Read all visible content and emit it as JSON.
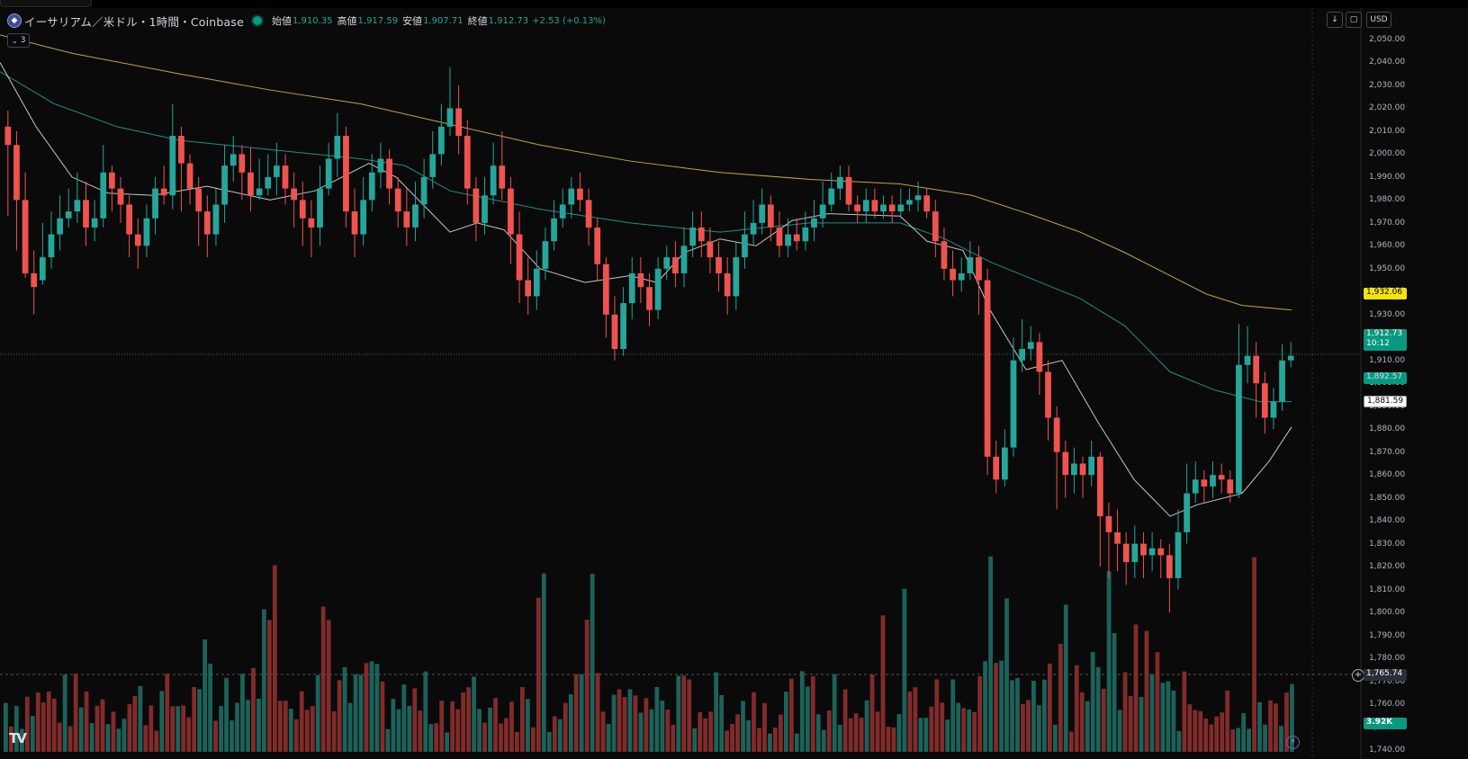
{
  "header": {
    "symbol_title": "イーサリアム／米ドル・1時間・Coinbase",
    "open_label": "始値",
    "open_value": "1,910.35",
    "high_label": "高値",
    "high_value": "1,917.59",
    "low_label": "安値",
    "low_value": "1,907.71",
    "close_label": "終値",
    "close_value": "1,912.73",
    "change": "+2.53 (+0.13%)",
    "indicator_count": "3"
  },
  "toolbar": {
    "currency": "USD"
  },
  "axis": {
    "ticks": [
      "2,050.00",
      "2,040.00",
      "2,030.00",
      "2,020.00",
      "2,010.00",
      "2,000.00",
      "1,990.00",
      "1,980.00",
      "1,970.00",
      "1,960.00",
      "1,950.00",
      "1,940.00",
      "1,930.00",
      "1,920.00",
      "1,910.00",
      "1,900.00",
      "1,890.00",
      "1,880.00",
      "1,870.00",
      "1,860.00",
      "1,850.00",
      "1,840.00",
      "1,830.00",
      "1,820.00",
      "1,810.00",
      "1,800.00",
      "1,790.00",
      "1,780.00",
      "1,770.00",
      "1,760.00",
      "1,750.00",
      "1,740.00"
    ]
  },
  "badges": {
    "ma_200": "1,932.06",
    "last_price": "1,912.73",
    "countdown": "10:12",
    "ma_100": "1,892.57",
    "ma_20": "1,881.59",
    "crosshair_price": "1,765.74",
    "volume": "3.92K"
  },
  "colors": {
    "up": "#26a69a",
    "down": "#ef5350",
    "ma_200": "#e0c050",
    "ma_100": "#26a69a",
    "ma_20": "#e8e8e8"
  },
  "chart_data": {
    "type": "candlestick",
    "ylim": [
      1740,
      2055
    ],
    "ma_lines": {
      "ma_200": [
        [
          0,
          2052
        ],
        [
          80,
          2044
        ],
        [
          200,
          2035
        ],
        [
          300,
          2028
        ],
        [
          400,
          2022
        ],
        [
          500,
          2013
        ],
        [
          600,
          2004
        ],
        [
          700,
          1997
        ],
        [
          800,
          1992
        ],
        [
          900,
          1989
        ],
        [
          1000,
          1987
        ],
        [
          1080,
          1982
        ],
        [
          1150,
          1973
        ],
        [
          1200,
          1966
        ],
        [
          1250,
          1957
        ],
        [
          1300,
          1947
        ],
        [
          1340,
          1939
        ],
        [
          1380,
          1934
        ],
        [
          1435,
          1932
        ]
      ],
      "ma_100": [
        [
          0,
          2036
        ],
        [
          60,
          2022
        ],
        [
          130,
          2012
        ],
        [
          200,
          2006
        ],
        [
          300,
          2002
        ],
        [
          400,
          1998
        ],
        [
          450,
          1995
        ],
        [
          500,
          1984
        ],
        [
          600,
          1976
        ],
        [
          700,
          1970
        ],
        [
          800,
          1966
        ],
        [
          900,
          1970
        ],
        [
          1000,
          1970
        ],
        [
          1050,
          1963
        ],
        [
          1100,
          1953
        ],
        [
          1150,
          1945
        ],
        [
          1200,
          1937
        ],
        [
          1250,
          1925
        ],
        [
          1300,
          1905
        ],
        [
          1350,
          1897
        ],
        [
          1400,
          1892
        ],
        [
          1435,
          1892
        ]
      ],
      "ma_20": [
        [
          0,
          2040
        ],
        [
          40,
          2012
        ],
        [
          80,
          1990
        ],
        [
          120,
          1983
        ],
        [
          170,
          1982
        ],
        [
          230,
          1986
        ],
        [
          300,
          1980
        ],
        [
          350,
          1984
        ],
        [
          380,
          1990
        ],
        [
          410,
          1996
        ],
        [
          440,
          1990
        ],
        [
          470,
          1978
        ],
        [
          500,
          1966
        ],
        [
          530,
          1970
        ],
        [
          560,
          1967
        ],
        [
          600,
          1950
        ],
        [
          650,
          1944
        ],
        [
          700,
          1947
        ],
        [
          730,
          1944
        ],
        [
          760,
          1957
        ],
        [
          800,
          1963
        ],
        [
          840,
          1960
        ],
        [
          880,
          1971
        ],
        [
          920,
          1974
        ],
        [
          1000,
          1973
        ],
        [
          1030,
          1962
        ],
        [
          1070,
          1958
        ],
        [
          1100,
          1932
        ],
        [
          1140,
          1906
        ],
        [
          1180,
          1910
        ],
        [
          1220,
          1883
        ],
        [
          1260,
          1858
        ],
        [
          1300,
          1842
        ],
        [
          1330,
          1847
        ],
        [
          1380,
          1852
        ],
        [
          1410,
          1866
        ],
        [
          1435,
          1881
        ]
      ]
    },
    "candles_ohlc": [
      [
        2012,
        2004,
        2019,
        1973
      ],
      [
        2004,
        1980,
        2010,
        1958
      ],
      [
        1980,
        1948,
        1992,
        1946
      ],
      [
        1948,
        1942,
        1958,
        1930
      ],
      [
        1945,
        1955,
        1970,
        1943
      ],
      [
        1955,
        1965,
        1975,
        1950
      ],
      [
        1965,
        1972,
        1982,
        1958
      ],
      [
        1972,
        1975,
        1985,
        1968
      ],
      [
        1975,
        1980,
        1992,
        1970
      ],
      [
        1980,
        1968,
        1988,
        1960
      ],
      [
        1968,
        1972,
        1980,
        1962
      ],
      [
        1972,
        1992,
        2004,
        1968
      ],
      [
        1992,
        1985,
        1995,
        1975
      ],
      [
        1985,
        1978,
        1990,
        1970
      ],
      [
        1978,
        1965,
        1982,
        1955
      ],
      [
        1965,
        1960,
        1972,
        1950
      ],
      [
        1960,
        1972,
        1978,
        1955
      ],
      [
        1972,
        1985,
        1990,
        1965
      ],
      [
        1985,
        1982,
        1995,
        1978
      ],
      [
        1982,
        2008,
        2022,
        1976
      ],
      [
        2008,
        1996,
        2012,
        1975
      ],
      [
        1996,
        1985,
        2000,
        1978
      ],
      [
        1985,
        1975,
        1990,
        1960
      ],
      [
        1975,
        1965,
        1982,
        1955
      ],
      [
        1965,
        1978,
        1985,
        1960
      ],
      [
        1978,
        1995,
        2004,
        1970
      ],
      [
        1995,
        2000,
        2008,
        1988
      ],
      [
        2000,
        1992,
        2004,
        1980
      ],
      [
        1992,
        1982,
        2003,
        1975
      ],
      [
        1982,
        1985,
        1998,
        1980
      ],
      [
        1985,
        1990,
        2000,
        1982
      ],
      [
        1990,
        1995,
        2005,
        1982
      ],
      [
        1995,
        1985,
        2000,
        1978
      ],
      [
        1985,
        1980,
        1992,
        1968
      ],
      [
        1980,
        1972,
        1988,
        1960
      ],
      [
        1972,
        1968,
        1980,
        1955
      ],
      [
        1968,
        1985,
        1995,
        1960
      ],
      [
        1985,
        1998,
        2005,
        1982
      ],
      [
        1998,
        2008,
        2018,
        1990
      ],
      [
        2008,
        1975,
        2012,
        1968
      ],
      [
        1975,
        1965,
        1985,
        1955
      ],
      [
        1965,
        1980,
        1990,
        1960
      ],
      [
        1980,
        1992,
        2000,
        1975
      ],
      [
        1992,
        1998,
        2005,
        1985
      ],
      [
        1998,
        1985,
        2002,
        1978
      ],
      [
        1985,
        1975,
        1990,
        1968
      ],
      [
        1975,
        1968,
        1985,
        1960
      ],
      [
        1968,
        1978,
        1988,
        1962
      ],
      [
        1978,
        1990,
        1998,
        1972
      ],
      [
        1990,
        2000,
        2010,
        1985
      ],
      [
        2000,
        2012,
        2022,
        1995
      ],
      [
        2012,
        2020,
        2038,
        2008
      ],
      [
        2020,
        2008,
        2030,
        2000
      ],
      [
        2008,
        1985,
        2015,
        1978
      ],
      [
        1985,
        1970,
        1990,
        1962
      ],
      [
        1970,
        1982,
        1990,
        1965
      ],
      [
        1982,
        1995,
        2005,
        1978
      ],
      [
        1995,
        1985,
        2010,
        1980
      ],
      [
        1985,
        1965,
        1990,
        1952
      ],
      [
        1965,
        1945,
        1975,
        1935
      ],
      [
        1945,
        1938,
        1955,
        1930
      ],
      [
        1938,
        1950,
        1958,
        1932
      ],
      [
        1950,
        1962,
        1968,
        1945
      ],
      [
        1962,
        1972,
        1980,
        1958
      ],
      [
        1972,
        1978,
        1985,
        1968
      ],
      [
        1978,
        1985,
        1990,
        1972
      ],
      [
        1985,
        1980,
        1992,
        1975
      ],
      [
        1980,
        1968,
        1985,
        1960
      ],
      [
        1968,
        1952,
        1972,
        1945
      ],
      [
        1952,
        1930,
        1955,
        1920
      ],
      [
        1930,
        1915,
        1938,
        1910
      ],
      [
        1915,
        1935,
        1942,
        1912
      ],
      [
        1935,
        1948,
        1955,
        1928
      ],
      [
        1948,
        1942,
        1955,
        1935
      ],
      [
        1942,
        1932,
        1948,
        1925
      ],
      [
        1932,
        1950,
        1955,
        1928
      ],
      [
        1950,
        1955,
        1960,
        1945
      ],
      [
        1955,
        1948,
        1962,
        1942
      ],
      [
        1948,
        1960,
        1968,
        1942
      ],
      [
        1960,
        1968,
        1975,
        1955
      ],
      [
        1968,
        1962,
        1975,
        1955
      ],
      [
        1962,
        1955,
        1968,
        1948
      ],
      [
        1955,
        1948,
        1962,
        1940
      ],
      [
        1948,
        1938,
        1955,
        1930
      ],
      [
        1938,
        1955,
        1962,
        1932
      ],
      [
        1955,
        1965,
        1975,
        1950
      ],
      [
        1965,
        1970,
        1980,
        1960
      ],
      [
        1970,
        1978,
        1985,
        1965
      ],
      [
        1978,
        1968,
        1982,
        1962
      ],
      [
        1968,
        1960,
        1975,
        1955
      ],
      [
        1960,
        1965,
        1972,
        1955
      ],
      [
        1965,
        1962,
        1972,
        1958
      ],
      [
        1962,
        1968,
        1975,
        1958
      ],
      [
        1968,
        1972,
        1980,
        1962
      ],
      [
        1972,
        1978,
        1988,
        1968
      ],
      [
        1978,
        1985,
        1992,
        1975
      ],
      [
        1985,
        1990,
        1995,
        1980
      ],
      [
        1990,
        1978,
        1995,
        1975
      ],
      [
        1978,
        1975,
        1982,
        1970
      ],
      [
        1975,
        1980,
        1985,
        1970
      ],
      [
        1980,
        1975,
        1985,
        1972
      ],
      [
        1975,
        1978,
        1982,
        1972
      ],
      [
        1978,
        1975,
        1982,
        1970
      ],
      [
        1975,
        1978,
        1985,
        1972
      ],
      [
        1978,
        1980,
        1985,
        1975
      ],
      [
        1980,
        1982,
        1988,
        1975
      ],
      [
        1982,
        1975,
        1985,
        1972
      ],
      [
        1975,
        1962,
        1980,
        1955
      ],
      [
        1962,
        1950,
        1968,
        1945
      ],
      [
        1950,
        1945,
        1958,
        1938
      ],
      [
        1945,
        1948,
        1955,
        1940
      ],
      [
        1948,
        1955,
        1962,
        1945
      ],
      [
        1955,
        1945,
        1960,
        1930
      ],
      [
        1945,
        1868,
        1950,
        1860
      ],
      [
        1868,
        1858,
        1875,
        1852
      ],
      [
        1858,
        1872,
        1880,
        1855
      ],
      [
        1872,
        1910,
        1920,
        1868
      ],
      [
        1910,
        1915,
        1928,
        1905
      ],
      [
        1915,
        1918,
        1925,
        1910
      ],
      [
        1918,
        1905,
        1922,
        1895
      ],
      [
        1905,
        1885,
        1910,
        1875
      ],
      [
        1885,
        1870,
        1890,
        1845
      ],
      [
        1870,
        1860,
        1875,
        1850
      ],
      [
        1860,
        1865,
        1872,
        1852
      ],
      [
        1865,
        1860,
        1868,
        1850
      ],
      [
        1860,
        1868,
        1875,
        1855
      ],
      [
        1868,
        1842,
        1870,
        1820
      ],
      [
        1842,
        1835,
        1848,
        1815
      ],
      [
        1835,
        1830,
        1845,
        1818
      ],
      [
        1830,
        1822,
        1835,
        1812
      ],
      [
        1822,
        1830,
        1838,
        1815
      ],
      [
        1830,
        1825,
        1835,
        1815
      ],
      [
        1825,
        1828,
        1835,
        1818
      ],
      [
        1828,
        1825,
        1832,
        1815
      ],
      [
        1825,
        1815,
        1830,
        1800
      ],
      [
        1815,
        1835,
        1845,
        1810
      ],
      [
        1835,
        1852,
        1865,
        1830
      ],
      [
        1852,
        1858,
        1866,
        1848
      ],
      [
        1858,
        1855,
        1862,
        1848
      ],
      [
        1855,
        1860,
        1866,
        1850
      ],
      [
        1860,
        1858,
        1865,
        1852
      ],
      [
        1858,
        1852,
        1862,
        1848
      ],
      [
        1852,
        1908,
        1926,
        1850
      ],
      [
        1908,
        1912,
        1925,
        1900
      ],
      [
        1912,
        1900,
        1918,
        1885
      ],
      [
        1900,
        1885,
        1905,
        1878
      ],
      [
        1885,
        1892,
        1898,
        1880
      ],
      [
        1892,
        1910,
        1917,
        1888
      ],
      [
        1910,
        1912,
        1918,
        1907
      ]
    ],
    "volume_scale_max": 100
  }
}
